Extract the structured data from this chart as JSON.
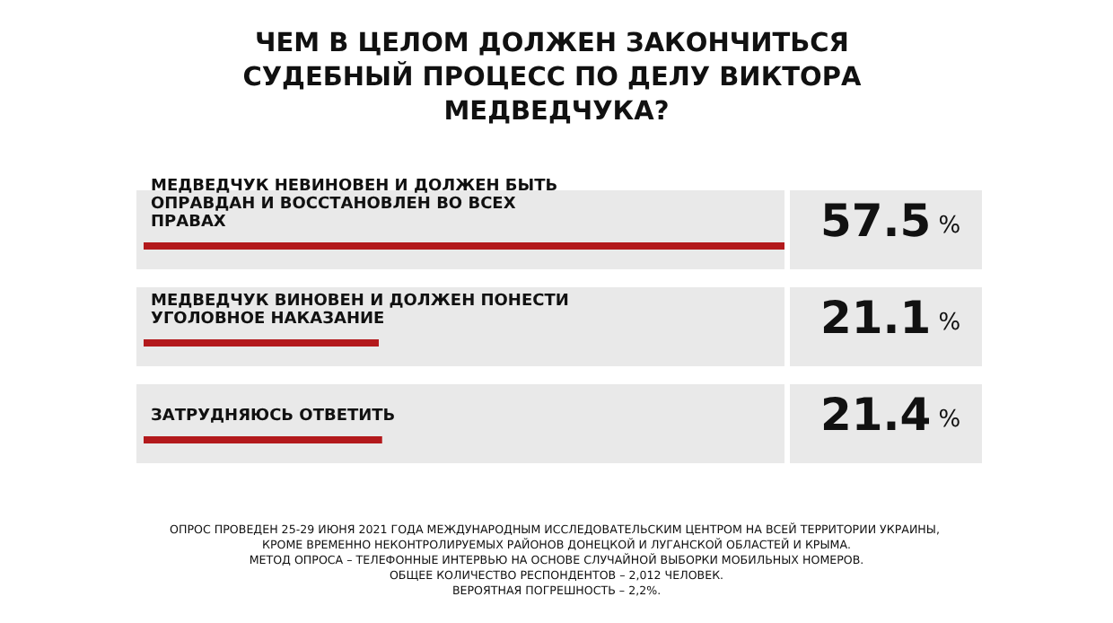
{
  "chart_data": {
    "type": "bar",
    "orientation": "horizontal",
    "title": "ЧЕМ В ЦЕЛОМ ДОЛЖЕН ЗАКОНЧИТЬСЯ СУДЕБНЫЙ ПРОЦЕСС ПО ДЕЛУ ВИКТОРА МЕДВЕДЧУКА?",
    "categories": [
      "МЕДВЕДЧУК НЕВИНОВЕН И ДОЛЖЕН БЫТЬ ОПРАВДАН И ВОССТАНОВЛЕН ВО ВСЕХ ПРАВАХ",
      "МЕДВЕДЧУК ВИНОВЕН И ДОЛЖЕН ПОНЕСТИ УГОЛОВНОЕ НАКАЗАНИЕ",
      "ЗАТРУДНЯЮСЬ ОТВЕТИТЬ"
    ],
    "values": [
      57.5,
      21.1,
      21.4
    ],
    "value_labels": [
      "57.5 %",
      "21.1 %",
      "21.4 %"
    ],
    "color": "#b3191c",
    "annotations": [
      "ОПРОС ПРОВЕДЕН 25-29 ИЮНЯ 2021 ГОДА МЕЖДУНАРОДНЫМ ИССЛЕДОВАТЕЛЬСКИМ ЦЕНТРОМ НА ВСЕЙ ТЕРРИТОРИИ УКРАИНЫ, КРОМЕ ВРЕМЕННО НЕКОНТРОЛИРУЕМЫХ РАЙОНОВ ДОНЕЦКОЙ И ЛУГАНСКОЙ ОБЛАСТЕЙ И КРЫМА.",
      "МЕТОД ОПРОСА – ТЕЛЕФОННЫЕ ИНТЕРВЬЮ НА ОСНОВЕ СЛУЧАЙНОЙ ВЫБОРКИ МОБИЛЬНЫХ НОМЕРОВ.",
      "ОБЩЕЕ КОЛИЧЕСТВО РЕСПОНДЕНТОВ – 2,012 ЧЕЛОВЕК.",
      "ВЕРОЯТНАЯ ПОГРЕШНОСТЬ – 2,2%."
    ]
  }
}
